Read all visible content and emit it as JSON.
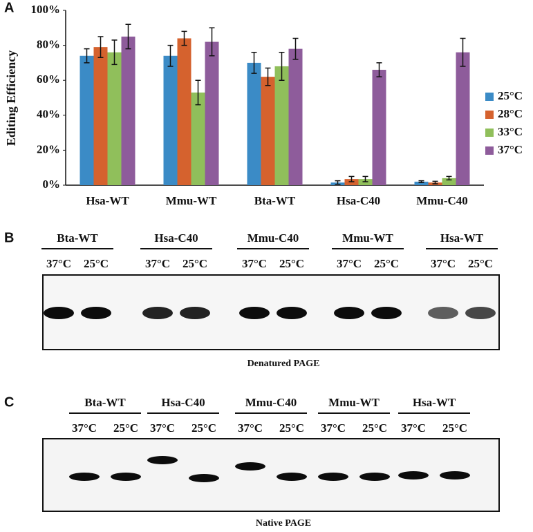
{
  "chart_data": {
    "type": "bar",
    "panel": "A",
    "ylabel": "Editing Efficiency",
    "categories": [
      "Hsa-WT",
      "Mmu-WT",
      "Bta-WT",
      "Hsa-C40",
      "Mmu-C40"
    ],
    "series": [
      {
        "name": "25°C",
        "color": "#3b8bc6",
        "values": [
          74,
          74,
          70,
          1.5,
          2
        ],
        "errors": [
          4,
          6,
          6,
          1,
          0.5
        ]
      },
      {
        "name": "28°C",
        "color": "#d5622e",
        "values": [
          79,
          84,
          62,
          3.5,
          1.5
        ],
        "errors": [
          6,
          4,
          5,
          1.5,
          0.7
        ]
      },
      {
        "name": "33°C",
        "color": "#90bf5b",
        "values": [
          76,
          53,
          68,
          3.5,
          4
        ],
        "errors": [
          7,
          7,
          8,
          1.5,
          1
        ]
      },
      {
        "name": "37°C",
        "color": "#8e5c9b",
        "values": [
          85,
          82,
          78,
          66,
          76
        ],
        "errors": [
          7,
          8,
          6,
          4,
          8
        ]
      }
    ],
    "ylim": [
      0,
      100
    ],
    "yticks": [
      {
        "value": 0,
        "label": "0%"
      },
      {
        "value": 20,
        "label": "20%"
      },
      {
        "value": 40,
        "label": "40%"
      },
      {
        "value": 60,
        "label": "60%"
      },
      {
        "value": 80,
        "label": "80%"
      },
      {
        "value": 100,
        "label": "100%"
      }
    ],
    "grid": false,
    "legend": "right"
  },
  "gels": [
    {
      "panel": "B",
      "caption": "Denatured PAGE",
      "groups": [
        {
          "name": "Bta-WT",
          "lanes": [
            "37°C",
            "25°C"
          ]
        },
        {
          "name": "Hsa-C40",
          "lanes": [
            "37°C",
            "25°C"
          ]
        },
        {
          "name": "Mmu-C40",
          "lanes": [
            "37°C",
            "25°C"
          ]
        },
        {
          "name": "Mmu-WT",
          "lanes": [
            "37°C",
            "25°C"
          ]
        },
        {
          "name": "Hsa-WT",
          "lanes": [
            "37°C",
            "25°C"
          ]
        }
      ]
    },
    {
      "panel": "C",
      "caption": "Native PAGE",
      "groups": [
        {
          "name": "Bta-WT",
          "lanes": [
            "37°C",
            "25°C"
          ]
        },
        {
          "name": "Hsa-C40",
          "lanes": [
            "37°C",
            "25°C"
          ]
        },
        {
          "name": "Mmu-C40",
          "lanes": [
            "37°C",
            "25°C"
          ]
        },
        {
          "name": "Mmu-WT",
          "lanes": [
            "37°C",
            "25°C"
          ]
        },
        {
          "name": "Hsa-WT",
          "lanes": [
            "37°C",
            "25°C"
          ]
        }
      ]
    }
  ]
}
